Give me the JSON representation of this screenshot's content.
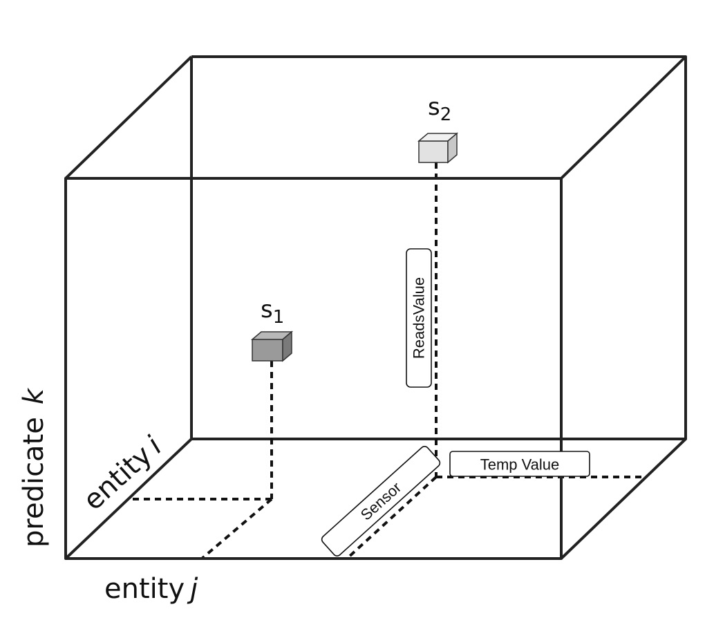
{
  "axes": {
    "k": {
      "word": "predicate",
      "var": "k"
    },
    "i": {
      "word": "entity",
      "var": "i"
    },
    "j": {
      "word": "entity",
      "var": "j"
    }
  },
  "items": {
    "s1": {
      "base": "s",
      "sub": "1",
      "fill": "#9a9a9a"
    },
    "s2": {
      "base": "s",
      "sub": "2",
      "fill": "#e2e2e2"
    }
  },
  "relations": {
    "reads_value": "ReadsValue",
    "temp_value": "Temp Value",
    "sensor": "Sensor"
  }
}
